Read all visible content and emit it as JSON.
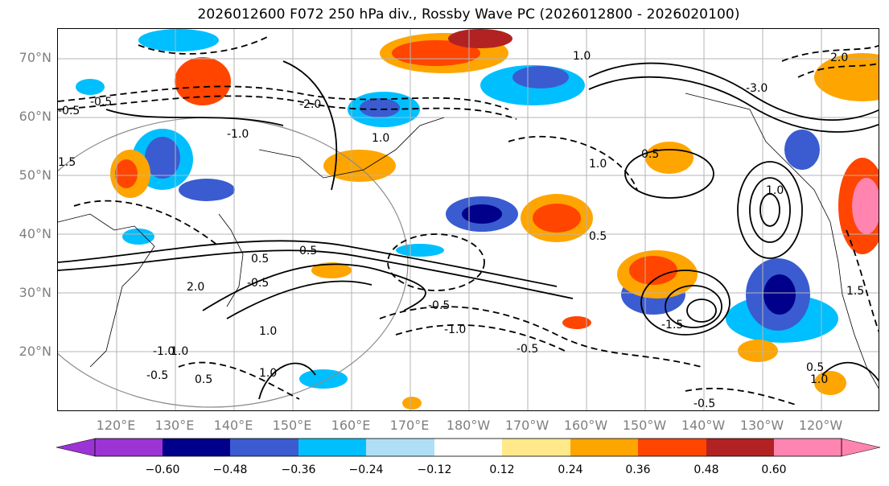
{
  "title": "2026012600 F072 250 hPa div., Rossby Wave PC (2026012800 - 2026020100)",
  "latitude_labels": [
    "70°N",
    "60°N",
    "50°N",
    "40°N",
    "30°N",
    "20°N"
  ],
  "longitude_labels": [
    "120°E",
    "130°E",
    "140°E",
    "150°E",
    "160°E",
    "170°E",
    "180°W",
    "170°W",
    "160°W",
    "150°W",
    "140°W",
    "130°W",
    "120°W"
  ],
  "contour_labels": [
    "-0.5",
    "0.5",
    "-1.0",
    "1.0",
    "-1.5",
    "1.5",
    "-2.0",
    "2.0",
    "-3.0"
  ],
  "colorbar": {
    "ticks": [
      "−0.60",
      "−0.48",
      "−0.36",
      "−0.24",
      "−0.12",
      "0.12",
      "0.24",
      "0.36",
      "0.48",
      "0.60"
    ],
    "colors": [
      "#9c33d4",
      "#00008b",
      "#3a5cd0",
      "#00bfff",
      "#aedff7",
      "#ffffff",
      "#ffe98a",
      "#ffa500",
      "#ff4500",
      "#b22222",
      "#ff85b0"
    ]
  }
}
